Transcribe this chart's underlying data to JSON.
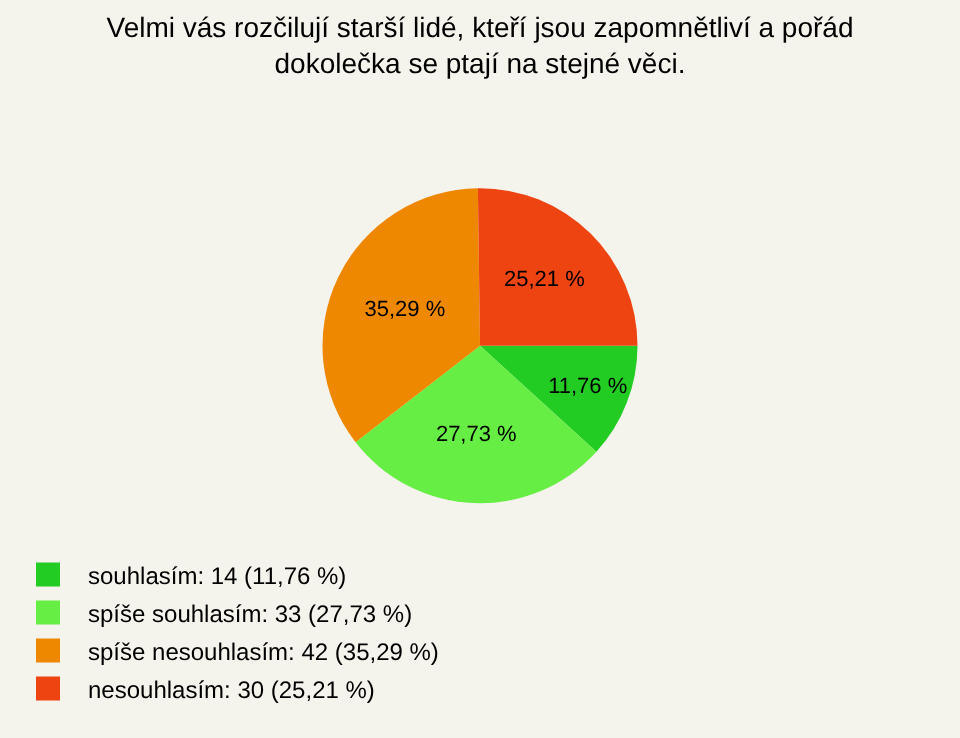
{
  "chart_data": {
    "type": "pie",
    "title": "Velmi vás rozčilují starší lidé, kteří jsou zapomnětliví a pořád\ndokolečka se ptají na stejné věci.",
    "categories": [
      "souhlasím: 14 (11,76 %)",
      "spíše souhlasím: 33 (27,73 %)",
      "spíše nesouhlasím: 42 (35,29 %)",
      "nesouhlasím: 30 (25,21 %)"
    ],
    "values": [
      11.76,
      27.73,
      35.29,
      25.21
    ],
    "value_labels": [
      "11,76 %",
      "27,73 %",
      "35,29 %",
      "25,21 %"
    ],
    "colors": [
      "#22cc22",
      "#66ee44",
      "#ee8800",
      "#ee4411"
    ],
    "legend": "bottom left"
  }
}
